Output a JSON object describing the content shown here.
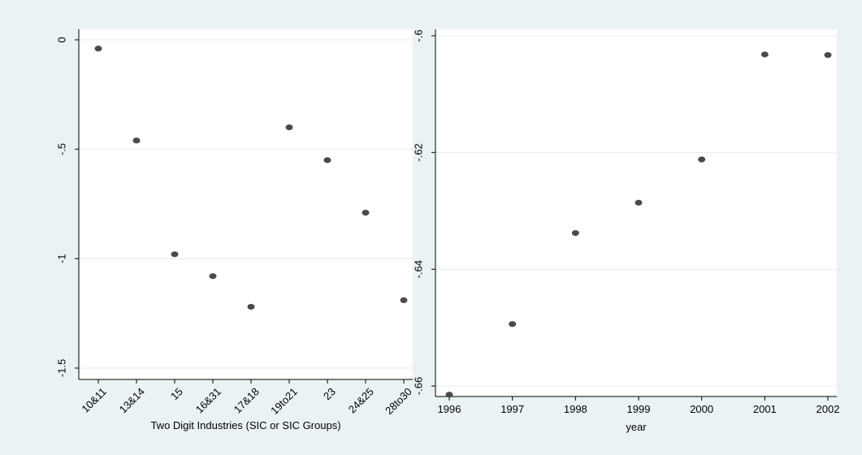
{
  "chart_data": [
    {
      "type": "scatter",
      "title": "",
      "xlabel": "Two Digit Industries (SIC or SIC Groups)",
      "ylabel": "",
      "categories": [
        "10&11",
        "13&14",
        "15",
        "16&31",
        "17&18",
        "19to21",
        "23",
        "24&25",
        "28to30"
      ],
      "values": [
        -0.04,
        -0.46,
        -0.98,
        -1.08,
        -1.22,
        -0.4,
        -0.55,
        -0.79,
        -1.19
      ],
      "ylim": [
        -1.5,
        0
      ],
      "yticks": [
        {
          "value": 0,
          "label": "0"
        },
        {
          "value": -0.5,
          "label": "-.5"
        },
        {
          "value": -1,
          "label": "-1"
        },
        {
          "value": -1.5,
          "label": "-1.5"
        }
      ],
      "grid": true,
      "legend": "none",
      "point_color": "#4a4a4a"
    },
    {
      "type": "scatter",
      "title": "",
      "xlabel": "year",
      "ylabel": "",
      "categories": [
        "1996",
        "1997",
        "1998",
        "1999",
        "2000",
        "2001",
        "2002"
      ],
      "values": [
        -0.6615,
        -0.6494,
        -0.6338,
        -0.6286,
        -0.6212,
        -0.6032,
        -0.6033
      ],
      "ylim": [
        -0.66,
        -0.6
      ],
      "yticks": [
        {
          "value": -0.6,
          "label": "-.6"
        },
        {
          "value": -0.62,
          "label": "-.62"
        },
        {
          "value": -0.64,
          "label": "-.64"
        },
        {
          "value": -0.66,
          "label": "-.66"
        }
      ],
      "grid": true,
      "legend": "none",
      "point_color": "#4a4a4a"
    }
  ],
  "colors": {
    "background": "#eaf2f3",
    "plot_background": "#ffffff",
    "grid": "#e4ecec",
    "axis": "#000000"
  }
}
